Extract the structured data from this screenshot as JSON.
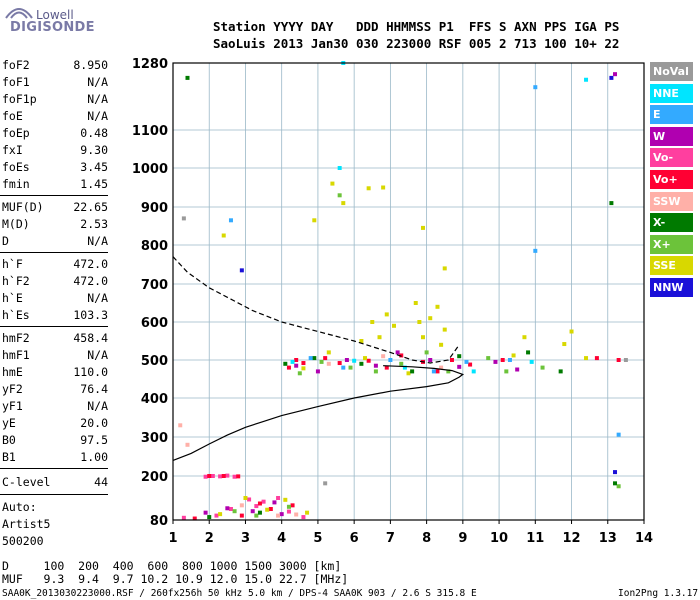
{
  "logo": {
    "top": "Lowell",
    "bottom": "DIGISONDE"
  },
  "header": {
    "line1": "Station YYYY DAY   DDD HHMMSS P1  FFS S AXN PPS IGA PS",
    "line2": "SaoLuis 2013 Jan30 030 223000 RSF 005 2 713 100 10+ 22"
  },
  "params_group1": [
    {
      "name": "foF2",
      "value": "8.950"
    },
    {
      "name": "foF1",
      "value": "N/A"
    },
    {
      "name": "foF1p",
      "value": "N/A"
    },
    {
      "name": "foE",
      "value": "N/A"
    },
    {
      "name": "foEp",
      "value": "0.48"
    },
    {
      "name": "fxI",
      "value": "9.30"
    },
    {
      "name": "foEs",
      "value": "3.45"
    },
    {
      "name": "fmin",
      "value": "1.45"
    }
  ],
  "params_group2": [
    {
      "name": "MUF(D)",
      "value": "22.65"
    },
    {
      "name": "M(D)",
      "value": "2.53"
    },
    {
      "name": "D",
      "value": "N/A"
    }
  ],
  "params_group3": [
    {
      "name": "h`F",
      "value": "472.0"
    },
    {
      "name": "h`F2",
      "value": "472.0"
    },
    {
      "name": "h`E",
      "value": "N/A"
    },
    {
      "name": "h`Es",
      "value": "103.3"
    }
  ],
  "params_group4": [
    {
      "name": "hmF2",
      "value": "458.4"
    },
    {
      "name": "hmF1",
      "value": "N/A"
    },
    {
      "name": "hmE",
      "value": "110.0"
    },
    {
      "name": "yF2",
      "value": "76.4"
    },
    {
      "name": "yF1",
      "value": "N/A"
    },
    {
      "name": "yE",
      "value": "20.0"
    },
    {
      "name": "B0",
      "value": "97.5"
    },
    {
      "name": "B1",
      "value": "1.00"
    }
  ],
  "clevel": {
    "name": "C-level",
    "value": "44"
  },
  "auto": [
    "Auto:",
    "Artist5",
    "500200"
  ],
  "legend": [
    {
      "label": "NoVal",
      "bg": "#9a9a9a",
      "fg": "#ffffff"
    },
    {
      "label": "NNE",
      "bg": "#00e5ff",
      "fg": "#ffffff"
    },
    {
      "label": "E",
      "bg": "#33aaff",
      "fg": "#ffffff"
    },
    {
      "label": "W",
      "bg": "#b000b0",
      "fg": "#ffffff"
    },
    {
      "label": "Vo-",
      "bg": "#ff3f9f",
      "fg": "#ffffff"
    },
    {
      "label": "Vo+",
      "bg": "#ff0033",
      "fg": "#ffffff"
    },
    {
      "label": "SSW",
      "bg": "#ffb0a8",
      "fg": "#ffffff"
    },
    {
      "label": "X-",
      "bg": "#007a00",
      "fg": "#ffffff"
    },
    {
      "label": "X+",
      "bg": "#6cc33a",
      "fg": "#ffffff"
    },
    {
      "label": "SSE",
      "bg": "#d8d800",
      "fg": "#ffffff"
    },
    {
      "label": "NNW",
      "bg": "#1a10d8",
      "fg": "#ffffff"
    }
  ],
  "footer": {
    "d_line": "D     100  200  400  600  800 1000 1500 3000 [km]",
    "muf_line": "MUF   9.3  9.4  9.7 10.2 10.9 12.0 15.0 22.7 [MHz]",
    "file_line": "SAA0K_2013030223000.RSF / 260fx256h 50 kHz 5.0 km / DPS-4 SAA0K 903 / 2.6 S 315.8 E",
    "version": "Ion2Png 1.3.17"
  },
  "chart_data": {
    "type": "scatter",
    "x_ticks": [
      "1",
      "2",
      "3",
      "4",
      "5",
      "6",
      "7",
      "8",
      "9",
      "10",
      "11",
      "12",
      "13",
      "14"
    ],
    "y_ticks": [
      "80",
      "200",
      "300",
      "400",
      "500",
      "600",
      "700",
      "800",
      "900",
      "1000",
      "1100",
      "1280"
    ],
    "xlim": [
      1,
      14
    ],
    "ylim": [
      80,
      1280
    ],
    "grid": true,
    "legend_position": "right",
    "series": [
      {
        "color": "#ff3f9f",
        "points": [
          [
            1.9,
            198
          ],
          [
            2.1,
            200
          ],
          [
            2.3,
            199
          ],
          [
            2.5,
            201
          ],
          [
            2.7,
            198
          ],
          [
            3.1,
            136
          ],
          [
            3.5,
            130
          ],
          [
            3.9,
            140
          ],
          [
            1.3,
            86
          ],
          [
            2.2,
            92
          ],
          [
            4.2,
            103
          ],
          [
            4.6,
            88
          ],
          [
            3.3,
            118
          ],
          [
            2.6,
            110
          ]
        ]
      },
      {
        "color": "#ff0033",
        "points": [
          [
            2.0,
            200
          ],
          [
            2.4,
            200
          ],
          [
            2.8,
            199
          ],
          [
            3.4,
            125
          ],
          [
            3.7,
            110
          ],
          [
            4.3,
            120
          ],
          [
            2.9,
            92
          ],
          [
            1.6,
            84
          ],
          [
            4.2,
            480
          ],
          [
            4.6,
            492
          ],
          [
            5.2,
            505
          ],
          [
            5.6,
            492
          ],
          [
            6.4,
            498
          ],
          [
            6.9,
            480
          ],
          [
            7.3,
            512
          ],
          [
            7.9,
            495
          ],
          [
            8.3,
            470
          ],
          [
            8.7,
            500
          ],
          [
            9.2,
            488
          ],
          [
            10.1,
            500
          ],
          [
            12.7,
            505
          ],
          [
            13.3,
            500
          ],
          [
            4.4,
            500
          ]
        ]
      },
      {
        "color": "#b000b0",
        "points": [
          [
            2.5,
            112
          ],
          [
            3.2,
            104
          ],
          [
            3.8,
            128
          ],
          [
            4.0,
            96
          ],
          [
            1.9,
            100
          ],
          [
            4.4,
            485
          ],
          [
            5.0,
            470
          ],
          [
            5.8,
            500
          ],
          [
            6.6,
            485
          ],
          [
            7.2,
            520
          ],
          [
            8.1,
            500
          ],
          [
            8.9,
            482
          ],
          [
            9.9,
            495
          ],
          [
            10.5,
            475
          ],
          [
            13.2,
            1250
          ]
        ]
      },
      {
        "color": "#d8d800",
        "points": [
          [
            3.0,
            140
          ],
          [
            3.6,
            108
          ],
          [
            4.1,
            135
          ],
          [
            2.3,
            96
          ],
          [
            4.7,
            100
          ],
          [
            6.2,
            550
          ],
          [
            6.5,
            600
          ],
          [
            6.7,
            560
          ],
          [
            6.9,
            620
          ],
          [
            7.1,
            590
          ],
          [
            7.7,
            650
          ],
          [
            7.9,
            560
          ],
          [
            8.1,
            610
          ],
          [
            8.3,
            640
          ],
          [
            8.5,
            580
          ],
          [
            8.4,
            540
          ],
          [
            7.8,
            600
          ],
          [
            6.8,
            950
          ],
          [
            6.4,
            948
          ],
          [
            5.7,
            910
          ],
          [
            5.4,
            960
          ],
          [
            4.9,
            865
          ],
          [
            7.9,
            845
          ],
          [
            2.4,
            825
          ],
          [
            8.5,
            740
          ],
          [
            10.4,
            512
          ],
          [
            12.0,
            575
          ],
          [
            4.6,
            478
          ],
          [
            5.3,
            520
          ],
          [
            6.3,
            505
          ],
          [
            7.5,
            465
          ],
          [
            10.7,
            560
          ],
          [
            11.8,
            542
          ],
          [
            12.4,
            505
          ]
        ]
      },
      {
        "color": "#6cc33a",
        "points": [
          [
            2.7,
            104
          ],
          [
            3.3,
            92
          ],
          [
            4.2,
            116
          ],
          [
            4.5,
            465
          ],
          [
            5.1,
            495
          ],
          [
            5.9,
            480
          ],
          [
            6.6,
            470
          ],
          [
            7.3,
            490
          ],
          [
            8.0,
            520
          ],
          [
            8.6,
            470
          ],
          [
            9.7,
            505
          ],
          [
            10.2,
            470
          ],
          [
            11.2,
            480
          ],
          [
            13.3,
            172
          ],
          [
            5.6,
            930
          ]
        ]
      },
      {
        "color": "#007a00",
        "points": [
          [
            3.4,
            100
          ],
          [
            2.0,
            88
          ],
          [
            4.1,
            490
          ],
          [
            4.9,
            505
          ],
          [
            6.2,
            490
          ],
          [
            7.6,
            470
          ],
          [
            8.9,
            510
          ],
          [
            10.8,
            520
          ],
          [
            11.7,
            470
          ],
          [
            13.1,
            910
          ],
          [
            13.2,
            180
          ],
          [
            1.4,
            1240
          ]
        ]
      },
      {
        "color": "#33aaff",
        "points": [
          [
            4.8,
            505
          ],
          [
            5.7,
            480
          ],
          [
            7.0,
            500
          ],
          [
            8.2,
            470
          ],
          [
            9.1,
            495
          ],
          [
            10.3,
            500
          ],
          [
            11.0,
            1215
          ],
          [
            11.0,
            785
          ],
          [
            13.3,
            306
          ],
          [
            2.6,
            865
          ]
        ]
      },
      {
        "color": "#00e5ff",
        "points": [
          [
            4.3,
            495
          ],
          [
            6.0,
            498
          ],
          [
            7.4,
            480
          ],
          [
            9.3,
            470
          ],
          [
            10.9,
            495
          ],
          [
            5.6,
            1000
          ],
          [
            5.7,
            1280
          ],
          [
            12.4,
            1235
          ]
        ]
      },
      {
        "color": "#ffb0a8",
        "points": [
          [
            2.9,
            120
          ],
          [
            4.4,
            95
          ],
          [
            3.9,
            92
          ],
          [
            5.3,
            490
          ],
          [
            6.8,
            510
          ],
          [
            8.4,
            480
          ],
          [
            1.2,
            330
          ],
          [
            1.4,
            280
          ]
        ]
      },
      {
        "color": "#1a10d8",
        "points": [
          [
            2.9,
            735
          ],
          [
            13.2,
            210
          ],
          [
            13.1,
            1240
          ]
        ]
      },
      {
        "color": "#9a9a9a",
        "points": [
          [
            1.3,
            870
          ],
          [
            13.5,
            500
          ],
          [
            5.2,
            180
          ]
        ]
      }
    ],
    "curves": [
      {
        "style": "dashed",
        "points": [
          [
            1.0,
            770
          ],
          [
            1.4,
            730
          ],
          [
            2.0,
            690
          ],
          [
            2.6,
            660
          ],
          [
            3.2,
            630
          ],
          [
            4.0,
            600
          ],
          [
            5.0,
            575
          ],
          [
            6.0,
            550
          ],
          [
            7.0,
            520
          ],
          [
            7.6,
            500
          ],
          [
            8.1,
            492
          ],
          [
            8.6,
            500
          ],
          [
            8.9,
            540
          ]
        ]
      },
      {
        "style": "solid",
        "points": [
          [
            1.0,
            240
          ],
          [
            1.5,
            258
          ],
          [
            2.0,
            282
          ],
          [
            2.5,
            305
          ],
          [
            3.0,
            325
          ],
          [
            3.5,
            340
          ],
          [
            4.0,
            355
          ],
          [
            5.0,
            378
          ],
          [
            6.0,
            400
          ],
          [
            7.0,
            418
          ],
          [
            8.0,
            430
          ],
          [
            8.6,
            440
          ],
          [
            8.9,
            455
          ],
          [
            9.0,
            462
          ],
          [
            8.7,
            472
          ],
          [
            8.2,
            478
          ],
          [
            7.6,
            482
          ],
          [
            6.8,
            485
          ]
        ]
      }
    ]
  }
}
